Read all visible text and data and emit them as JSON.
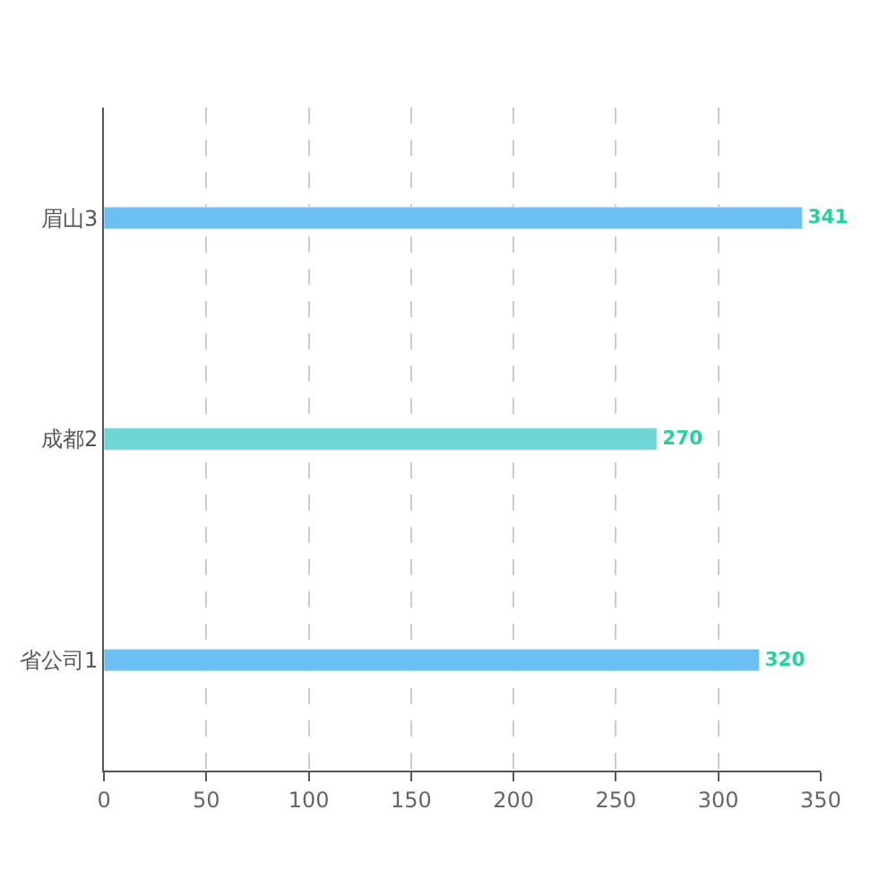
{
  "chart_data": {
    "type": "bar",
    "orientation": "horizontal",
    "categories": [
      "眉山3",
      "成都2",
      "省公司1"
    ],
    "values": [
      341,
      270,
      320
    ],
    "colors": [
      "#6cbff2",
      "#6fd6d6",
      "#6cbff2"
    ],
    "xlim": [
      0,
      350
    ],
    "xticks": [
      0,
      50,
      100,
      150,
      200,
      250,
      300,
      350
    ],
    "grid": "x",
    "data_labels": true
  }
}
